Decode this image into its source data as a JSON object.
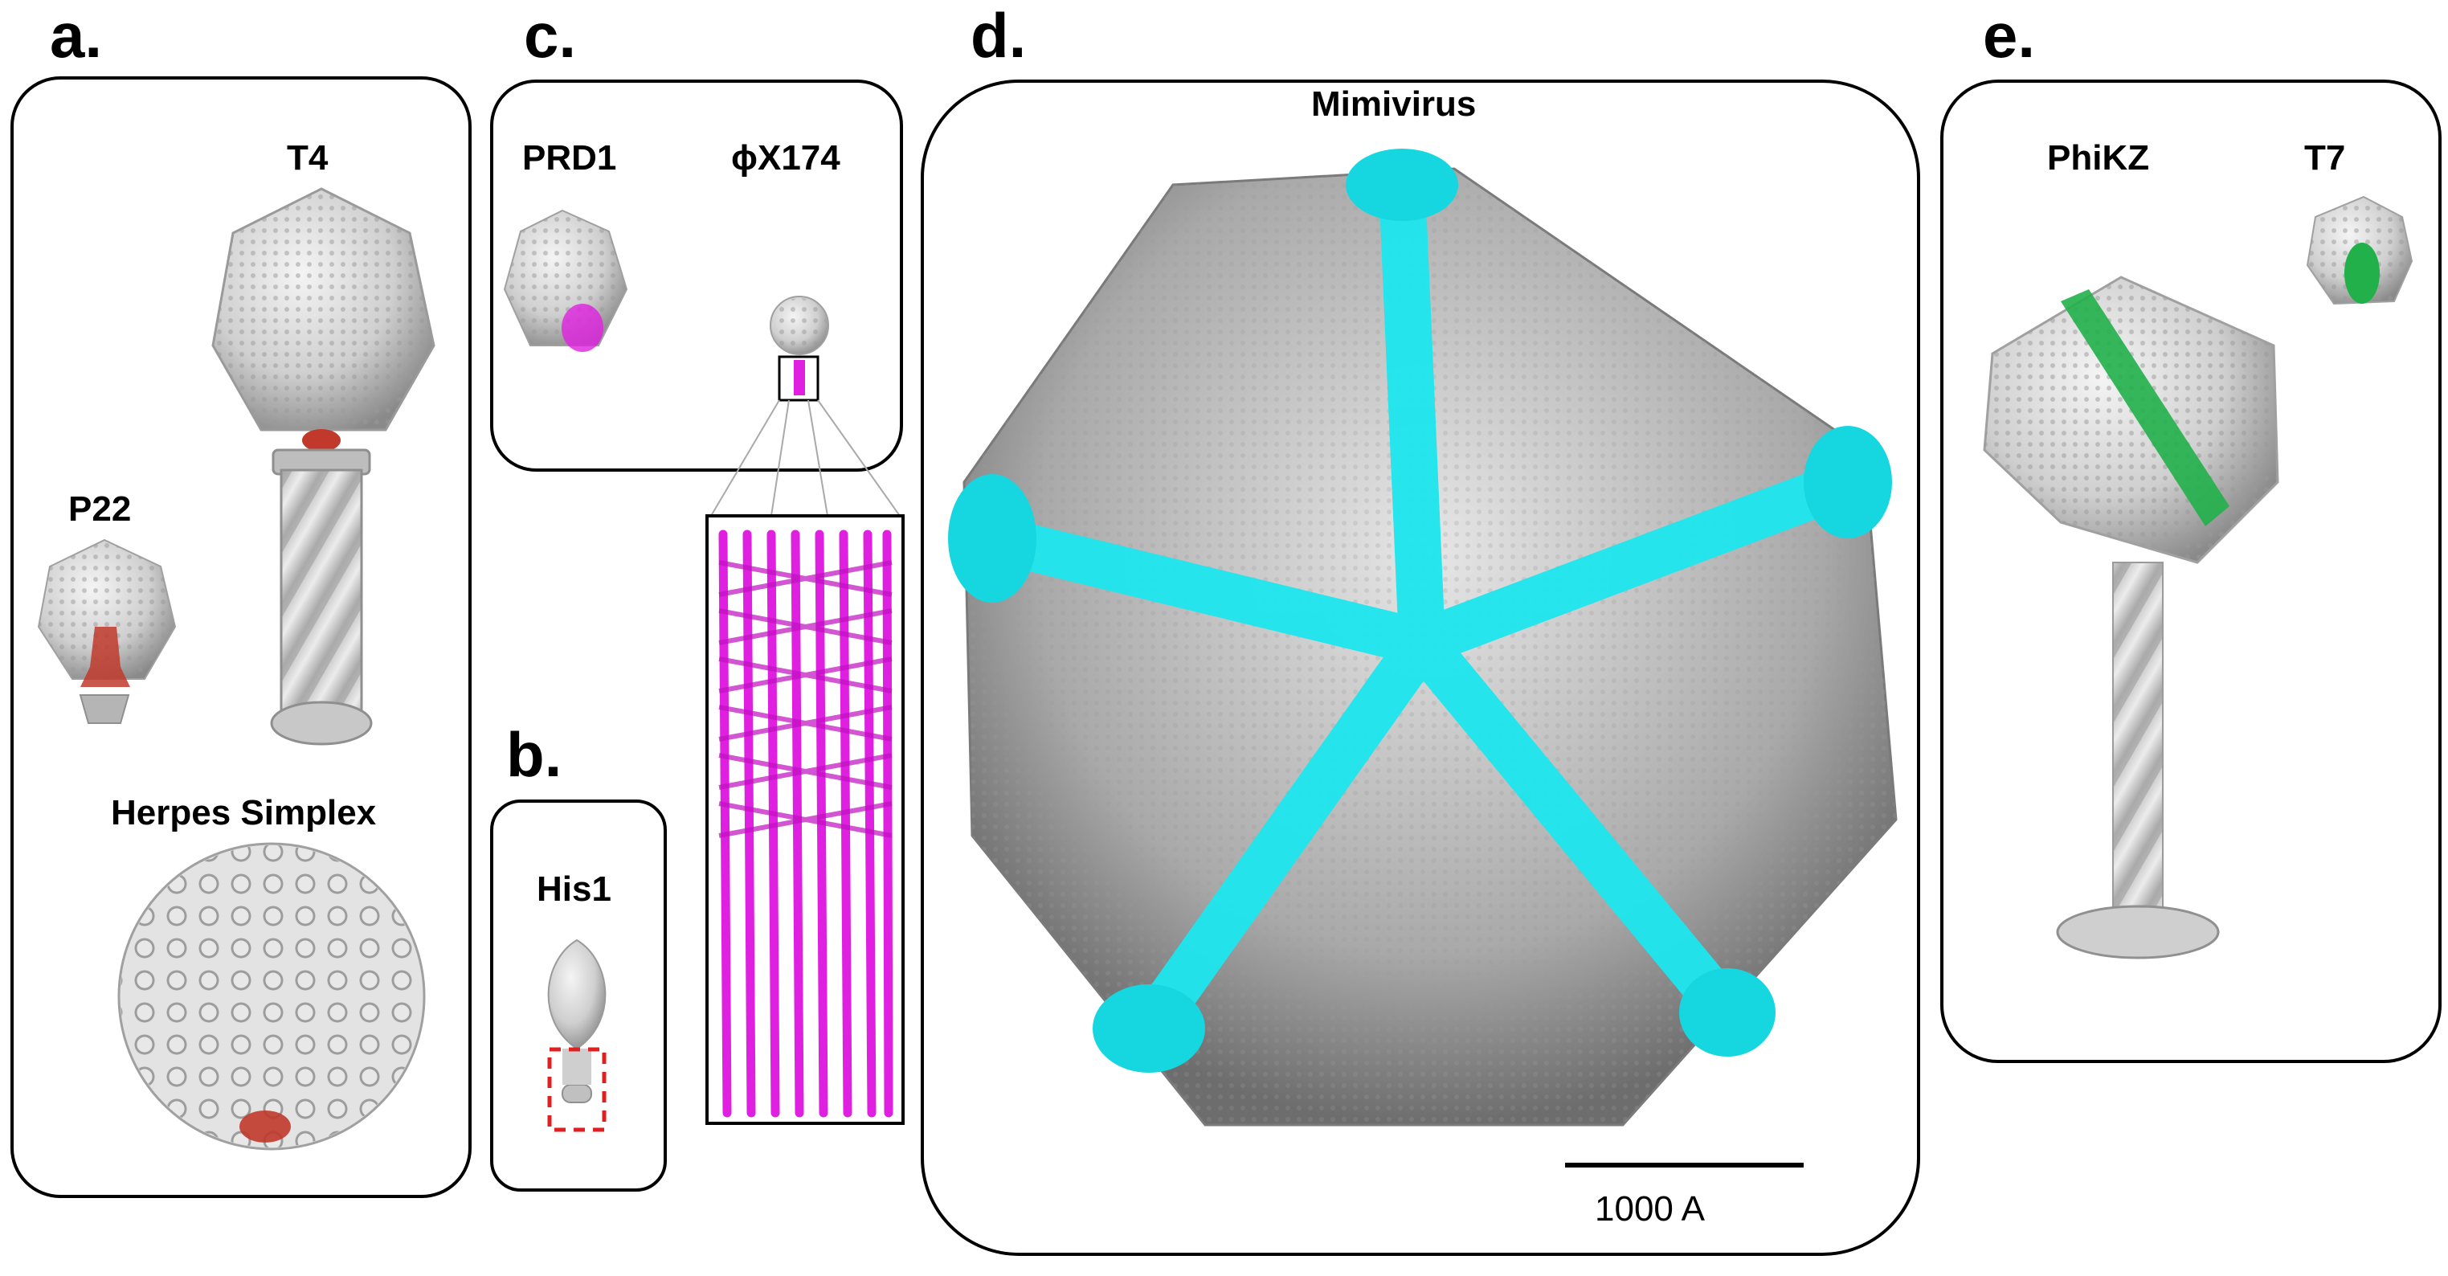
{
  "panels": {
    "a": {
      "letter": "a.",
      "viruses": {
        "t4": "T4",
        "p22": "P22",
        "herpes": "Herpes Simplex"
      }
    },
    "b": {
      "letter": "b.",
      "viruses": {
        "his1": "His1"
      }
    },
    "c": {
      "letter": "c.",
      "viruses": {
        "prd1": "PRD1",
        "phix174": "ϕX174"
      }
    },
    "d": {
      "letter": "d.",
      "viruses": {
        "mimivirus": "Mimivirus"
      },
      "scale_bar": {
        "label": "1000 A"
      }
    },
    "e": {
      "letter": "e.",
      "viruses": {
        "phikz": "PhiKZ",
        "t7": "T7"
      }
    }
  },
  "colors": {
    "capsid_gray": "#c8c8c8",
    "highlight_red": "#c0392b",
    "highlight_magenta": "#e020e0",
    "highlight_cyan": "#10e0e8",
    "highlight_green": "#22b04a",
    "frame": "#000000"
  }
}
